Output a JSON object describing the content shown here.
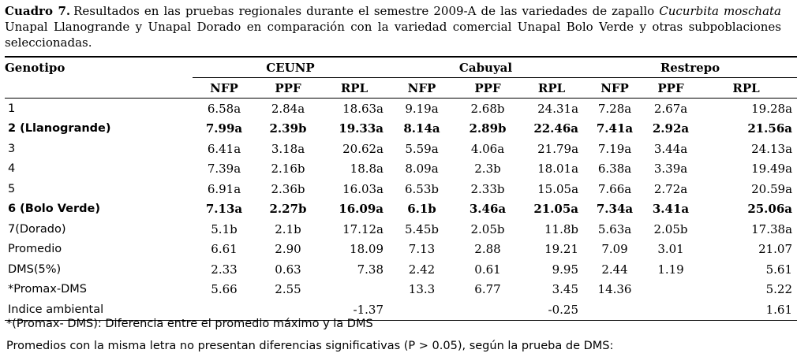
{
  "caption": {
    "label": "Cuadro 7.",
    "text": "Resultados en las pruebas regionales durante el semestre 2009-A de las variedades de zapallo",
    "species": "Cucurbita moschata",
    "text2": "Unapal Llanogrande y Unapal Dorado en comparación con la variedad comercial Unapal Bolo Verde y otras subpoblaciones seleccionadas."
  },
  "table": {
    "genotype_header": "Genotipo",
    "locations": [
      "CEUNP",
      "Cabuyal",
      "Restrepo"
    ],
    "subcols": [
      "NFP",
      "PPF",
      "RPL",
      "NFP",
      "PPF",
      "RPL",
      "NFP",
      "PPF",
      "RPL"
    ],
    "rows": [
      {
        "g": "1",
        "v": [
          "6.58a",
          "2.84a",
          "18.63a",
          "9.19a",
          "2.68b",
          "24.31a",
          "7.28a",
          "2.67a",
          "19.28a"
        ]
      },
      {
        "g": "2 (Llanogrande)",
        "v": [
          "7.99a",
          "2.39b",
          "19.33a",
          "8.14a",
          "2.89b",
          "22.46a",
          "7.41a",
          "2.92a",
          "21.56a"
        ]
      },
      {
        "g": "3",
        "v": [
          "6.41a",
          "3.18a",
          "20.62a",
          "5.59a",
          "4.06a",
          "21.79a",
          "7.19a",
          "3.44a",
          "24.13a"
        ]
      },
      {
        "g": "4",
        "v": [
          "7.39a",
          "2.16b",
          "18.8a",
          "8.09a",
          "2.3b",
          "18.01a",
          "6.38a",
          "3.39a",
          "19.49a"
        ]
      },
      {
        "g": "5",
        "v": [
          "6.91a",
          "2.36b",
          "16.03a",
          "6.53b",
          "2.33b",
          "15.05a",
          "7.66a",
          "2.72a",
          "20.59a"
        ]
      },
      {
        "g": "6 (Bolo Verde)",
        "v": [
          "7.13a",
          "2.27b",
          "16.09a",
          "6.1b",
          "3.46a",
          "21.05a",
          "7.34a",
          "3.41a",
          "25.06a"
        ]
      },
      {
        "g": "7(Dorado)",
        "v": [
          "5.1b",
          "2.1b",
          "17.12a",
          "5.45b",
          "2.05b",
          "11.8b",
          "5.63a",
          "2.05b",
          "17.38a"
        ]
      },
      {
        "g": "Promedio",
        "v": [
          "6.61",
          "2.90",
          "18.09",
          "7.13",
          "2.88",
          "19.21",
          "7.09",
          "3.01",
          "21.07"
        ]
      },
      {
        "g": "DMS(5%)",
        "v": [
          "2.33",
          "0.63",
          "7.38",
          "2.42",
          "0.61",
          "9.95",
          "2.44",
          "1.19",
          "5.61"
        ]
      },
      {
        "g": "*Promax-DMS",
        "v": [
          "5.66",
          "2.55",
          "",
          "13.3",
          "6.77",
          "3.45",
          "14.36",
          "",
          "5.22"
        ]
      },
      {
        "g": "Indice ambiental",
        "v": [
          "",
          "",
          "-1.37",
          "",
          "",
          "-0.25",
          "",
          "",
          "1.61"
        ]
      }
    ]
  },
  "footnotes": {
    "note1": "*(Promax- DMS): Diferencia entre el promedio máximo y la DMS",
    "note2": "Promedios con la misma letra no presentan diferencias significativas (P > 0.05), según la prueba de DMS:"
  }
}
